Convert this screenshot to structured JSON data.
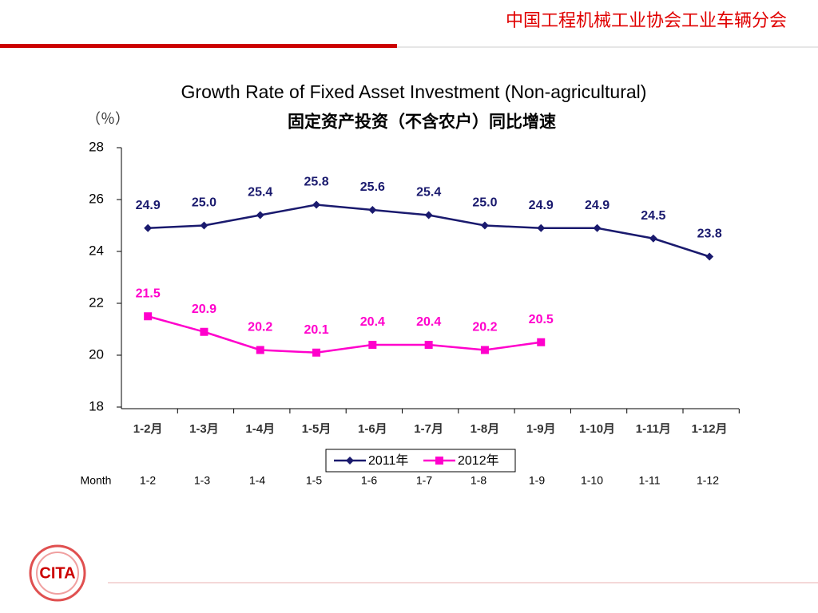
{
  "header": "中国工程机械工业协会工业车辆分会",
  "chart_data": {
    "type": "line",
    "title": "Growth Rate of Fixed Asset Investment (Non-agricultural)",
    "subtitle": "固定资产投资（不含农户）同比增速",
    "y_label": "（％）",
    "categories": [
      "1-2月",
      "1-3月",
      "1-4月",
      "1-5月",
      "1-6月",
      "1-7月",
      "1-8月",
      "1-9月",
      "1-10月",
      "1-11月",
      "1-12月"
    ],
    "series": [
      {
        "name": "2011年",
        "color": "#1a1a6e",
        "marker": "diamond",
        "values": [
          24.9,
          25,
          25.4,
          25.8,
          25.6,
          25.4,
          25,
          24.9,
          24.9,
          24.5,
          23.8
        ],
        "value_labels": [
          "24.9",
          "25.0",
          "25.4",
          "25.8",
          "25.6",
          "25.4",
          "25.0",
          "24.9",
          "24.9",
          "24.5",
          "23.8"
        ]
      },
      {
        "name": "2012年",
        "color": "#ff00cc",
        "marker": "square",
        "values": [
          21.5,
          20.9,
          20.2,
          20.1,
          20.4,
          20.4,
          20.2,
          20.5,
          null,
          null,
          null
        ],
        "value_labels": [
          "21.5",
          "20.9",
          "20.2",
          "20.1",
          "20.4",
          "20.4",
          "20.2",
          "20.5",
          null,
          null,
          null
        ]
      }
    ],
    "ylim": [
      18,
      28
    ],
    "yticks": [
      18,
      20,
      22,
      24,
      26,
      28
    ],
    "grid": false,
    "legend": "bottom"
  },
  "month_row": {
    "label": "Month",
    "items": [
      "1-2",
      "1-3",
      "1-4",
      "1-5",
      "1-6",
      "1-7",
      "1-8",
      "1-9",
      "1-10",
      "1-11",
      "1-12"
    ]
  },
  "logo": "CITA"
}
